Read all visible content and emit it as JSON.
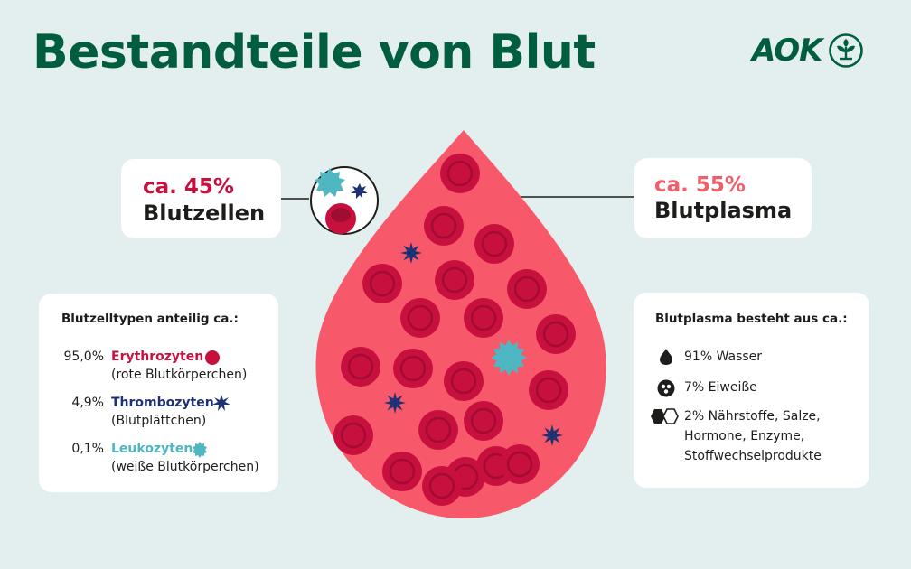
{
  "title": "Bestandteile von Blut",
  "logo": {
    "text": "AOK",
    "color": "#005e3f"
  },
  "colors": {
    "background": "#e3efee",
    "drop": "#f7596a",
    "erythrocyte": "#c8103e",
    "thrombocyte": "#1e3273",
    "leukocyte": "#4fb7c1",
    "plasma_accent": "#f25d6a"
  },
  "left_callout": {
    "percent": "ca. 45%",
    "label": "Blutzellen"
  },
  "right_callout": {
    "percent": "ca. 55%",
    "label": "Blutplasma"
  },
  "cell_types": {
    "title": "Blutzelltypen anteilig ca.:",
    "items": [
      {
        "percent": "95,0%",
        "name": "Erythrozyten",
        "subtitle": "(rote Blutkörperchen)",
        "icon": "red-blood-cell-icon"
      },
      {
        "percent": "4,9%",
        "name": "Thrombozyten",
        "subtitle": "(Blutplättchen)",
        "icon": "platelet-star-icon"
      },
      {
        "percent": "0,1%",
        "name": "Leukozyten",
        "subtitle": "(weiße Blutkörperchen)",
        "icon": "white-blood-cell-icon"
      }
    ]
  },
  "plasma": {
    "title": "Blutplasma besteht aus ca.:",
    "items": [
      {
        "text": "91% Wasser",
        "icon": "water-drop-icon"
      },
      {
        "text": "7% Eiweiße",
        "icon": "protein-icon"
      },
      {
        "text_lines": [
          "2% Nährstoffe, Salze,",
          "Hormone, Enzyme,",
          "Stoffwechselprodukte"
        ],
        "icon": "hexagon-molecule-icon"
      }
    ]
  }
}
